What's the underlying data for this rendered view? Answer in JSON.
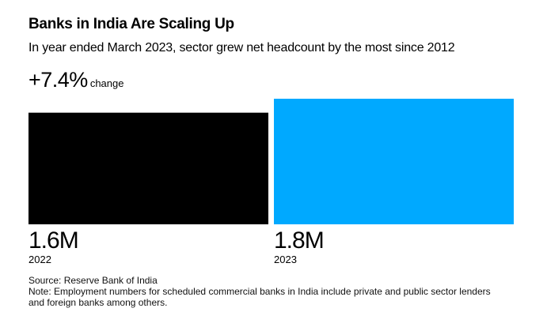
{
  "chart_data": {
    "type": "bar",
    "title": "Banks in India Are Scaling Up",
    "subtitle": "In year ended March 2023, sector grew net headcount by the most since 2012",
    "change_value": "+7.4%",
    "change_label": "change",
    "categories": [
      "2022",
      "2023"
    ],
    "values": [
      1.6,
      1.8
    ],
    "value_labels": [
      "1.6M",
      "1.8M"
    ],
    "unit": "million employees",
    "colors": [
      "#000000",
      "#00a9ff"
    ],
    "xlabel": "",
    "ylabel": "",
    "grid": false,
    "source": "Source: Reserve Bank of India",
    "note": "Note: Employment numbers for scheduled commercial banks in India include private and public sector lenders and foreign banks among others."
  }
}
